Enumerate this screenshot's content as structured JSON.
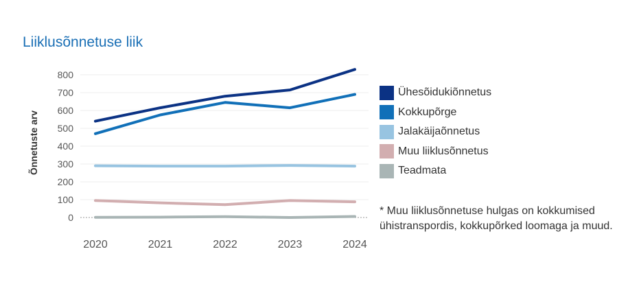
{
  "chart_data": {
    "type": "line",
    "title": "Liiklusõnnetuse liik",
    "ylabel": "Õnnetuste arv",
    "xlabel": "",
    "x": [
      "2020",
      "2021",
      "2022",
      "2023",
      "2024"
    ],
    "yticks": [
      0,
      100,
      200,
      300,
      400,
      500,
      600,
      700,
      800
    ],
    "ylim": [
      0,
      850
    ],
    "grid": "horizontal",
    "legend_position": "right",
    "series": [
      {
        "name": "Ühesõidukiõnnetus",
        "color": "#0b3284",
        "values": [
          540,
          615,
          680,
          715,
          830
        ]
      },
      {
        "name": "Kokkupõrge",
        "color": "#1170b8",
        "values": [
          470,
          575,
          645,
          615,
          690
        ]
      },
      {
        "name": "Jalakäijaõnnetus",
        "color": "#98c4e1",
        "values": [
          290,
          288,
          288,
          292,
          288
        ]
      },
      {
        "name": "Muu liiklusõnnetus",
        "color": "#d2aeb0",
        "values": [
          95,
          82,
          72,
          95,
          88
        ]
      },
      {
        "name": "Teadmata",
        "color": "#a9b5b5",
        "values": [
          1,
          2,
          5,
          0,
          6
        ]
      }
    ],
    "note": "* Muu liiklusõnnetuse hulgas on kokkumised ühistranspordis, kokkupõrked loomaga ja muud."
  }
}
